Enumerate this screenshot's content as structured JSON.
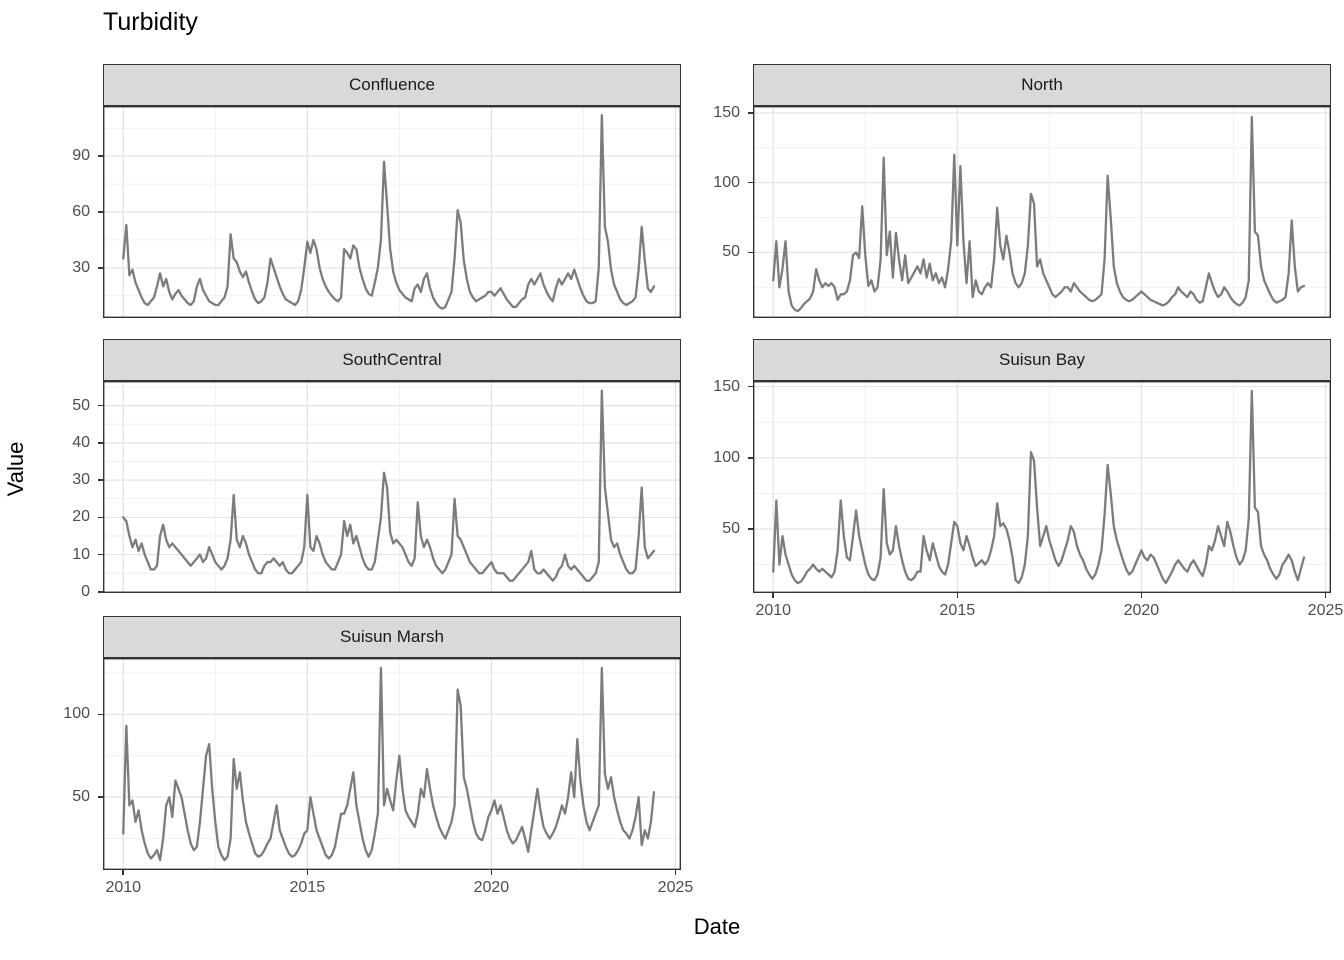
{
  "title": "Turbidity",
  "x_axis_title": "Date",
  "y_axis_title": "Value",
  "colors": {
    "line": "#7c7c7c",
    "strip_fill": "#d9d9d9",
    "strip_border": "#333333",
    "panel_border": "#333333",
    "grid_major": "#e3e3e3",
    "grid_minor": "#efefef",
    "tick_label": "#4d4d4d",
    "tick_mark": "#333333",
    "title_text": "#000000"
  },
  "x_scale": {
    "lim": [
      2009.45,
      2025.15
    ],
    "major": [
      2010,
      2015,
      2020,
      2025
    ],
    "minor": [
      2012.5,
      2017.5,
      2022.5
    ],
    "labels": [
      "2010",
      "2015",
      "2020",
      "2025"
    ]
  },
  "chart_data": [
    {
      "type": "line",
      "title": "Confluence",
      "xlabel": "Date",
      "ylabel": "Value",
      "legend": "none",
      "grid": "on",
      "x_start": 2010.0,
      "x_step_years": 0.08333,
      "ylim": [
        3,
        117
      ],
      "yticks": [
        30,
        60,
        90
      ],
      "ytick_labels": [
        "30",
        "60",
        "90"
      ],
      "yminor": [
        15,
        45,
        75,
        105
      ],
      "values": [
        35,
        53,
        26,
        29,
        22,
        18,
        14,
        11,
        10,
        12,
        14,
        20,
        27,
        20,
        24,
        17,
        13,
        16,
        18,
        15,
        13,
        11,
        10,
        12,
        20,
        24,
        18,
        15,
        12,
        11,
        10,
        10,
        12,
        14,
        20,
        48,
        35,
        33,
        28,
        25,
        28,
        22,
        17,
        13,
        11,
        12,
        14,
        22,
        35,
        30,
        25,
        20,
        16,
        13,
        12,
        11,
        10,
        12,
        18,
        30,
        44,
        38,
        45,
        40,
        30,
        24,
        20,
        17,
        15,
        13,
        12,
        14,
        40,
        38,
        35,
        42,
        40,
        30,
        24,
        19,
        16,
        15,
        22,
        30,
        45,
        87,
        64,
        40,
        28,
        22,
        18,
        16,
        14,
        13,
        12,
        19,
        21,
        17,
        24,
        27,
        19,
        14,
        11,
        9,
        8,
        9,
        13,
        17,
        35,
        61,
        54,
        34,
        24,
        17,
        14,
        12,
        13,
        14,
        15,
        17,
        17,
        15,
        17,
        19,
        16,
        13,
        11,
        9,
        9,
        11,
        13,
        14,
        21,
        24,
        21,
        24,
        27,
        21,
        17,
        14,
        12,
        19,
        24,
        21,
        24,
        27,
        24,
        29,
        24,
        19,
        15,
        12,
        11,
        11,
        12,
        30,
        112,
        52,
        44,
        29,
        21,
        17,
        13,
        11,
        10,
        11,
        12,
        14,
        29,
        52,
        34,
        19,
        17,
        20
      ]
    },
    {
      "type": "line",
      "title": "North",
      "xlabel": "Date",
      "ylabel": "Value",
      "legend": "none",
      "grid": "on",
      "x_start": 2010.0,
      "x_step_years": 0.08333,
      "ylim": [
        3,
        155
      ],
      "yticks": [
        50,
        100,
        150
      ],
      "ytick_labels": [
        "50",
        "100",
        "150"
      ],
      "yminor": [
        25,
        75,
        125
      ],
      "values": [
        30,
        58,
        25,
        38,
        58,
        22,
        12,
        9,
        8,
        10,
        13,
        15,
        17,
        22,
        38,
        30,
        25,
        28,
        26,
        28,
        25,
        16,
        20,
        20,
        22,
        30,
        48,
        50,
        46,
        83,
        48,
        26,
        30,
        22,
        25,
        45,
        118,
        48,
        65,
        32,
        64,
        45,
        30,
        48,
        28,
        32,
        36,
        40,
        35,
        45,
        32,
        42,
        30,
        35,
        28,
        32,
        25,
        38,
        58,
        120,
        55,
        112,
        58,
        28,
        58,
        18,
        30,
        22,
        20,
        25,
        28,
        25,
        45,
        82,
        55,
        45,
        62,
        50,
        35,
        28,
        25,
        28,
        35,
        55,
        92,
        85,
        40,
        45,
        35,
        30,
        25,
        20,
        18,
        20,
        22,
        25,
        25,
        22,
        28,
        25,
        22,
        20,
        18,
        16,
        15,
        16,
        18,
        20,
        45,
        105,
        75,
        40,
        28,
        22,
        18,
        16,
        15,
        16,
        18,
        20,
        22,
        20,
        18,
        16,
        15,
        14,
        13,
        12,
        13,
        15,
        18,
        20,
        25,
        22,
        20,
        18,
        22,
        20,
        16,
        14,
        15,
        25,
        35,
        28,
        22,
        18,
        20,
        25,
        22,
        18,
        15,
        13,
        12,
        14,
        18,
        30,
        147,
        65,
        62,
        40,
        30,
        25,
        20,
        16,
        14,
        15,
        16,
        18,
        35,
        73,
        40,
        22,
        25,
        26
      ]
    },
    {
      "type": "line",
      "title": "SouthCentral",
      "xlabel": "Date",
      "ylabel": "Value",
      "legend": "none",
      "grid": "on",
      "x_start": 2010.0,
      "x_step_years": 0.08333,
      "ylim": [
        -0.3,
        56.6
      ],
      "yticks": [
        0,
        10,
        20,
        30,
        40,
        50
      ],
      "ytick_labels": [
        "0",
        "10",
        "20",
        "30",
        "40",
        "50"
      ],
      "yminor": [
        5,
        15,
        25,
        35,
        45,
        55
      ],
      "values": [
        20,
        19,
        15,
        12,
        14,
        11,
        13,
        10,
        8,
        6,
        6,
        7,
        15,
        18,
        14,
        12,
        13,
        12,
        11,
        10,
        9,
        8,
        7,
        8,
        9,
        10,
        8,
        9,
        12,
        10,
        8,
        7,
        6,
        7,
        9,
        14,
        26,
        14,
        12,
        15,
        13,
        10,
        8,
        6,
        5,
        5,
        7,
        8,
        8,
        9,
        8,
        7,
        8,
        6,
        5,
        5,
        6,
        7,
        8,
        12,
        26,
        12,
        11,
        15,
        13,
        10,
        8,
        7,
        6,
        6,
        8,
        10,
        19,
        15,
        18,
        13,
        15,
        12,
        9,
        7,
        6,
        6,
        8,
        14,
        20,
        32,
        28,
        16,
        13,
        14,
        13,
        12,
        10,
        8,
        7,
        9,
        24,
        15,
        12,
        14,
        12,
        9,
        7,
        6,
        5,
        6,
        8,
        10,
        25,
        15,
        14,
        12,
        10,
        8,
        7,
        6,
        5,
        5,
        6,
        7,
        8,
        6,
        5,
        5,
        5,
        4,
        3,
        3,
        4,
        5,
        6,
        7,
        8,
        11,
        6,
        5,
        5,
        6,
        5,
        4,
        3,
        4,
        6,
        7,
        10,
        7,
        6,
        7,
        6,
        5,
        4,
        3,
        3,
        4,
        5,
        8,
        54,
        28,
        21,
        14,
        12,
        13,
        10,
        8,
        6,
        5,
        5,
        6,
        15,
        28,
        12,
        9,
        10,
        11
      ]
    },
    {
      "type": "line",
      "title": "Suisun Bay",
      "xlabel": "Date",
      "ylabel": "Value",
      "legend": "none",
      "grid": "on",
      "x_start": 2010.0,
      "x_step_years": 0.08333,
      "ylim": [
        5,
        154
      ],
      "yticks": [
        50,
        100,
        150
      ],
      "ytick_labels": [
        "50",
        "100",
        "150"
      ],
      "yminor": [
        25,
        75,
        125
      ],
      "values": [
        20,
        70,
        25,
        45,
        32,
        25,
        18,
        14,
        12,
        13,
        16,
        20,
        22,
        25,
        22,
        20,
        22,
        20,
        18,
        16,
        20,
        35,
        70,
        45,
        30,
        28,
        45,
        63,
        45,
        35,
        25,
        18,
        15,
        14,
        18,
        30,
        78,
        40,
        32,
        35,
        52,
        38,
        28,
        20,
        15,
        14,
        16,
        20,
        20,
        45,
        35,
        28,
        40,
        32,
        24,
        20,
        18,
        25,
        40,
        55,
        52,
        40,
        35,
        45,
        38,
        30,
        24,
        26,
        28,
        25,
        28,
        35,
        45,
        68,
        52,
        54,
        50,
        42,
        30,
        14,
        12,
        16,
        25,
        45,
        104,
        98,
        65,
        38,
        45,
        52,
        42,
        35,
        28,
        24,
        28,
        35,
        42,
        52,
        48,
        38,
        32,
        28,
        22,
        18,
        15,
        18,
        25,
        35,
        60,
        95,
        75,
        52,
        42,
        35,
        28,
        22,
        18,
        20,
        25,
        30,
        35,
        30,
        28,
        32,
        30,
        25,
        20,
        15,
        12,
        16,
        20,
        25,
        28,
        25,
        22,
        20,
        25,
        28,
        24,
        20,
        17,
        25,
        38,
        35,
        42,
        52,
        45,
        38,
        55,
        48,
        38,
        30,
        25,
        28,
        35,
        57,
        147,
        65,
        62,
        38,
        32,
        28,
        22,
        18,
        15,
        18,
        25,
        28,
        32,
        28,
        20,
        14,
        22,
        30
      ]
    },
    {
      "type": "line",
      "title": "Suisun Marsh",
      "xlabel": "Date",
      "ylabel": "Value",
      "legend": "none",
      "grid": "on",
      "x_start": 2010.0,
      "x_step_years": 0.08333,
      "ylim": [
        6,
        134
      ],
      "yticks": [
        50,
        100
      ],
      "ytick_labels": [
        "50",
        "100"
      ],
      "yminor": [
        25,
        75,
        125
      ],
      "values": [
        28,
        93,
        45,
        48,
        35,
        42,
        30,
        22,
        16,
        13,
        15,
        18,
        12,
        25,
        45,
        50,
        38,
        60,
        55,
        50,
        40,
        30,
        22,
        18,
        20,
        35,
        55,
        75,
        82,
        55,
        35,
        20,
        15,
        12,
        14,
        25,
        73,
        55,
        65,
        48,
        35,
        28,
        22,
        16,
        14,
        15,
        18,
        22,
        25,
        35,
        45,
        30,
        25,
        20,
        16,
        14,
        15,
        18,
        22,
        28,
        30,
        50,
        40,
        30,
        25,
        20,
        15,
        13,
        15,
        20,
        30,
        40,
        40,
        45,
        55,
        65,
        45,
        35,
        25,
        18,
        14,
        18,
        28,
        40,
        128,
        45,
        55,
        48,
        42,
        60,
        75,
        55,
        42,
        38,
        35,
        32,
        40,
        55,
        50,
        67,
        55,
        45,
        38,
        32,
        28,
        25,
        30,
        35,
        45,
        115,
        105,
        62,
        55,
        45,
        35,
        28,
        25,
        24,
        30,
        38,
        42,
        48,
        40,
        45,
        38,
        30,
        25,
        22,
        24,
        28,
        32,
        25,
        17,
        30,
        42,
        55,
        42,
        32,
        28,
        25,
        28,
        32,
        38,
        45,
        40,
        50,
        65,
        50,
        85,
        60,
        45,
        35,
        30,
        35,
        40,
        45,
        128,
        64,
        55,
        62,
        50,
        42,
        35,
        30,
        28,
        25,
        30,
        38,
        50,
        21,
        30,
        25,
        35,
        53
      ]
    }
  ]
}
